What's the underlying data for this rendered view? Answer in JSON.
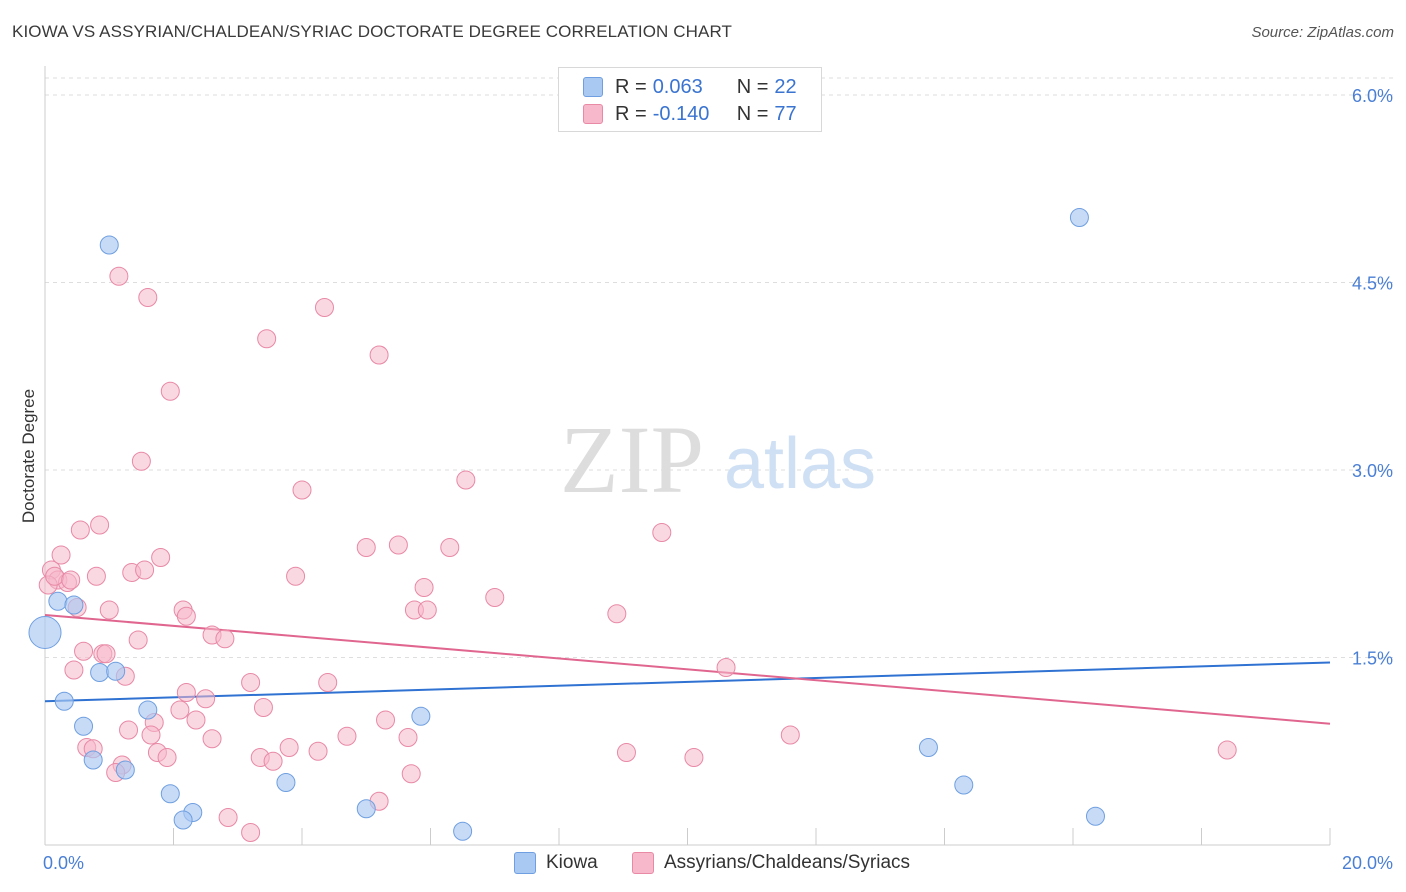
{
  "header": {
    "title": "KIOWA VS ASSYRIAN/CHALDEAN/SYRIAC DOCTORATE DEGREE CORRELATION CHART",
    "source": "Source: ZipAtlas.com"
  },
  "watermark": {
    "zip": "ZIP",
    "atlas": "atlas"
  },
  "legend": {
    "kiowa": {
      "r_label": "R =",
      "r_value": "0.063",
      "n_label": "N =",
      "n_value": "22"
    },
    "assyrian": {
      "r_label": "R =",
      "r_value": "-0.140",
      "n_label": "N =",
      "n_value": "77"
    }
  },
  "bottom_legend": {
    "kiowa": "Kiowa",
    "assyrian": "Assyrians/Chaldeans/Syriacs"
  },
  "colors": {
    "kiowa_fill": "#a9c8f2",
    "kiowa_stroke": "#6f9fe0",
    "kiowa_line": "#2f72d2",
    "assyrian_fill": "#f6b8ca",
    "assyrian_stroke": "#e889a6",
    "assyrian_line": "#e0668f",
    "grid": "#dedede",
    "tick_text": "#4a7fd4"
  },
  "chart_data": {
    "type": "scatter",
    "title": "KIOWA VS ASSYRIAN/CHALDEAN/SYRIAC DOCTORATE DEGREE CORRELATION CHART",
    "xlabel": "",
    "ylabel": "Doctorate Degree",
    "xlim": [
      0,
      20
    ],
    "ylim": [
      0,
      6.2
    ],
    "x_tick_labels": [
      "0.0%",
      "20.0%"
    ],
    "y_ticks": [
      1.5,
      3.0,
      4.5,
      6.0
    ],
    "y_tick_labels": [
      "1.5%",
      "3.0%",
      "4.5%",
      "6.0%"
    ],
    "grid": true,
    "series": [
      {
        "name": "Kiowa",
        "r": 0.063,
        "n": 22,
        "trend": {
          "x": [
            0,
            20
          ],
          "y": [
            1.15,
            1.46
          ]
        },
        "points": [
          {
            "x": 0.0,
            "y": 1.7,
            "big": true
          },
          {
            "x": 0.2,
            "y": 1.95
          },
          {
            "x": 0.45,
            "y": 1.92
          },
          {
            "x": 1.0,
            "y": 4.8
          },
          {
            "x": 0.85,
            "y": 1.38
          },
          {
            "x": 1.1,
            "y": 1.39
          },
          {
            "x": 0.3,
            "y": 1.15
          },
          {
            "x": 0.6,
            "y": 0.95
          },
          {
            "x": 0.75,
            "y": 0.68
          },
          {
            "x": 1.6,
            "y": 1.08
          },
          {
            "x": 1.25,
            "y": 0.6
          },
          {
            "x": 1.95,
            "y": 0.41
          },
          {
            "x": 2.3,
            "y": 0.26
          },
          {
            "x": 2.15,
            "y": 0.2
          },
          {
            "x": 3.75,
            "y": 0.5
          },
          {
            "x": 5.0,
            "y": 0.29
          },
          {
            "x": 5.85,
            "y": 1.03
          },
          {
            "x": 6.5,
            "y": 0.11
          },
          {
            "x": 16.1,
            "y": 5.02
          },
          {
            "x": 13.75,
            "y": 0.78
          },
          {
            "x": 14.3,
            "y": 0.48
          },
          {
            "x": 16.35,
            "y": 0.23
          }
        ]
      },
      {
        "name": "Assyrians/Chaldeans/Syriacs",
        "r": -0.14,
        "n": 77,
        "trend": {
          "x": [
            0,
            20
          ],
          "y": [
            1.84,
            0.97
          ]
        },
        "points": [
          {
            "x": 0.1,
            "y": 2.2
          },
          {
            "x": 0.2,
            "y": 2.12
          },
          {
            "x": 0.05,
            "y": 2.08
          },
          {
            "x": 0.35,
            "y": 2.1
          },
          {
            "x": 0.25,
            "y": 2.32
          },
          {
            "x": 0.15,
            "y": 2.15
          },
          {
            "x": 0.4,
            "y": 2.12
          },
          {
            "x": 0.55,
            "y": 2.52
          },
          {
            "x": 0.85,
            "y": 2.56
          },
          {
            "x": 0.5,
            "y": 1.9
          },
          {
            "x": 1.0,
            "y": 1.88
          },
          {
            "x": 0.8,
            "y": 2.15
          },
          {
            "x": 1.35,
            "y": 2.18
          },
          {
            "x": 1.55,
            "y": 2.2
          },
          {
            "x": 1.8,
            "y": 2.3
          },
          {
            "x": 1.15,
            "y": 4.55
          },
          {
            "x": 1.6,
            "y": 4.38
          },
          {
            "x": 1.5,
            "y": 3.07
          },
          {
            "x": 1.95,
            "y": 3.63
          },
          {
            "x": 3.45,
            "y": 4.05
          },
          {
            "x": 4.35,
            "y": 4.3
          },
          {
            "x": 5.2,
            "y": 3.92
          },
          {
            "x": 4.0,
            "y": 2.84
          },
          {
            "x": 6.55,
            "y": 2.92
          },
          {
            "x": 9.6,
            "y": 2.5
          },
          {
            "x": 5.0,
            "y": 2.38
          },
          {
            "x": 5.5,
            "y": 2.4
          },
          {
            "x": 6.3,
            "y": 2.38
          },
          {
            "x": 3.9,
            "y": 2.15
          },
          {
            "x": 5.9,
            "y": 2.06
          },
          {
            "x": 7.0,
            "y": 1.98
          },
          {
            "x": 5.75,
            "y": 1.88
          },
          {
            "x": 5.95,
            "y": 1.88
          },
          {
            "x": 8.9,
            "y": 1.85
          },
          {
            "x": 2.15,
            "y": 1.88
          },
          {
            "x": 2.2,
            "y": 1.83
          },
          {
            "x": 2.6,
            "y": 1.68
          },
          {
            "x": 2.8,
            "y": 1.65
          },
          {
            "x": 1.45,
            "y": 1.64
          },
          {
            "x": 0.6,
            "y": 1.55
          },
          {
            "x": 0.9,
            "y": 1.53
          },
          {
            "x": 0.95,
            "y": 1.53
          },
          {
            "x": 0.45,
            "y": 1.4
          },
          {
            "x": 1.25,
            "y": 1.35
          },
          {
            "x": 3.2,
            "y": 1.3
          },
          {
            "x": 4.4,
            "y": 1.3
          },
          {
            "x": 2.2,
            "y": 1.22
          },
          {
            "x": 2.5,
            "y": 1.17
          },
          {
            "x": 3.4,
            "y": 1.1
          },
          {
            "x": 2.1,
            "y": 1.08
          },
          {
            "x": 2.35,
            "y": 1.0
          },
          {
            "x": 1.7,
            "y": 0.98
          },
          {
            "x": 5.3,
            "y": 1.0
          },
          {
            "x": 1.3,
            "y": 0.92
          },
          {
            "x": 1.65,
            "y": 0.88
          },
          {
            "x": 2.6,
            "y": 0.85
          },
          {
            "x": 4.7,
            "y": 0.87
          },
          {
            "x": 5.65,
            "y": 0.86
          },
          {
            "x": 0.65,
            "y": 0.78
          },
          {
            "x": 0.75,
            "y": 0.77
          },
          {
            "x": 1.75,
            "y": 0.74
          },
          {
            "x": 1.9,
            "y": 0.7
          },
          {
            "x": 3.35,
            "y": 0.7
          },
          {
            "x": 3.55,
            "y": 0.67
          },
          {
            "x": 3.8,
            "y": 0.78
          },
          {
            "x": 4.25,
            "y": 0.75
          },
          {
            "x": 1.2,
            "y": 0.64
          },
          {
            "x": 1.1,
            "y": 0.58
          },
          {
            "x": 5.7,
            "y": 0.57
          },
          {
            "x": 9.05,
            "y": 0.74
          },
          {
            "x": 10.1,
            "y": 0.7
          },
          {
            "x": 11.6,
            "y": 0.88
          },
          {
            "x": 10.6,
            "y": 1.42
          },
          {
            "x": 18.4,
            "y": 0.76
          },
          {
            "x": 2.85,
            "y": 0.22
          },
          {
            "x": 3.2,
            "y": 0.1
          },
          {
            "x": 5.2,
            "y": 0.35
          }
        ]
      }
    ]
  }
}
